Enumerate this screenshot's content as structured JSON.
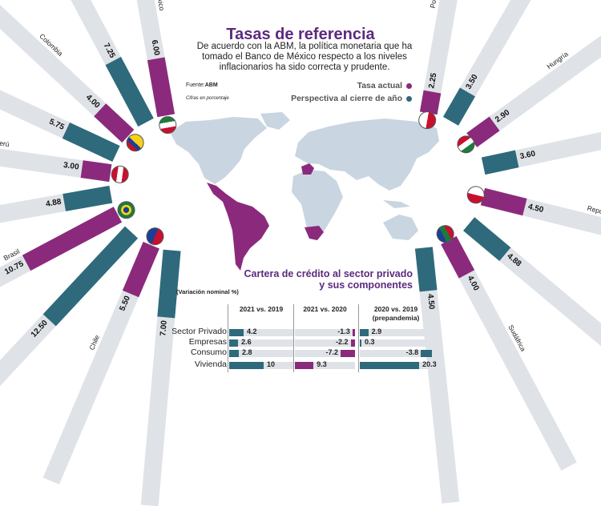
{
  "header": {
    "title": "Tasas de referencia",
    "subtitle": "De acuerdo con la ABM, la política monetaria que ha tomado el Banco de México respecto a los niveles inflacionarios ha sido correcta y prudente.",
    "source_label": "Fuente:",
    "source": "ABM",
    "units": "Cifras en porcentaje"
  },
  "legend": {
    "actual": "Tasa actual",
    "outlook": "Perspectiva al cierre de año"
  },
  "colors": {
    "actual": "#8b2a7c",
    "outlook": "#2e6a7c",
    "bar_bg": "#dfe3e8",
    "map": "#c9d5e0",
    "title": "#5b2a7e"
  },
  "countries": [
    {
      "name": "México",
      "side": "left",
      "actual": 6.0,
      "actual_label": "6.00",
      "outlook": 7.25,
      "outlook_label": "7.25",
      "flag": "mexico-flag"
    },
    {
      "name": "Colombia",
      "side": "left",
      "actual": 4.0,
      "actual_label": "4.00",
      "outlook": 5.75,
      "outlook_label": "5.75",
      "flag": "colombia-flag"
    },
    {
      "name": "Perú",
      "side": "left",
      "actual": 3.0,
      "actual_label": "3.00",
      "outlook": 4.88,
      "outlook_label": "4.88",
      "flag": "peru-flag"
    },
    {
      "name": "Brasil",
      "side": "left",
      "actual": 10.75,
      "actual_label": "10.75",
      "outlook": 12.5,
      "outlook_label": "12.50",
      "flag": "brazil-flag"
    },
    {
      "name": "Chile",
      "side": "left",
      "actual": 5.5,
      "actual_label": "5.50",
      "outlook": 7.0,
      "outlook_label": "7.00",
      "flag": "chile-flag"
    },
    {
      "name": "Polonia",
      "side": "right",
      "actual": 2.25,
      "actual_label": "2.25",
      "outlook": 3.5,
      "outlook_label": "3.50",
      "flag": "poland-flag"
    },
    {
      "name": "Hungría",
      "side": "right",
      "actual": 2.9,
      "actual_label": "2.90",
      "outlook": 3.6,
      "outlook_label": "3.60",
      "flag": "hungary-flag"
    },
    {
      "name": "República Checa",
      "side": "right",
      "actual": 4.5,
      "actual_label": "4.50",
      "outlook": 4.88,
      "outlook_label": "4.88",
      "flag": "czech-flag"
    },
    {
      "name": "Sudáfrica",
      "side": "right",
      "actual": 4.0,
      "actual_label": "4.00",
      "outlook": 4.5,
      "outlook_label": "4.50",
      "flag": "south-africa-flag"
    }
  ],
  "credit": {
    "title_line1": "Cartera de crédito al sector privado",
    "title_line2": "y sus componentes",
    "note": "(Variación nominal %)",
    "columns": [
      {
        "label": "2021 vs. 2019",
        "sublabel": ""
      },
      {
        "label": "2021 vs. 2020",
        "sublabel": ""
      },
      {
        "label": "2020 vs. 2019",
        "sublabel": "(prepandemia)"
      }
    ],
    "rows": [
      {
        "label": "Sector Privado",
        "values": [
          4.2,
          -1.3,
          2.9
        ],
        "labels": [
          "4.2",
          "-1.3",
          "2.9"
        ]
      },
      {
        "label": "Empresas",
        "values": [
          2.6,
          -2.2,
          0.3
        ],
        "labels": [
          "2.6",
          "-2.2",
          "0.3"
        ]
      },
      {
        "label": "Consumo",
        "values": [
          2.8,
          -7.2,
          -3.8
        ],
        "labels": [
          "2.8",
          "-7.2",
          "-3.8"
        ]
      },
      {
        "label": "Vivienda",
        "values": [
          10,
          9.3,
          20.3
        ],
        "labels": [
          "10",
          "9.3",
          "20.3"
        ]
      }
    ]
  }
}
